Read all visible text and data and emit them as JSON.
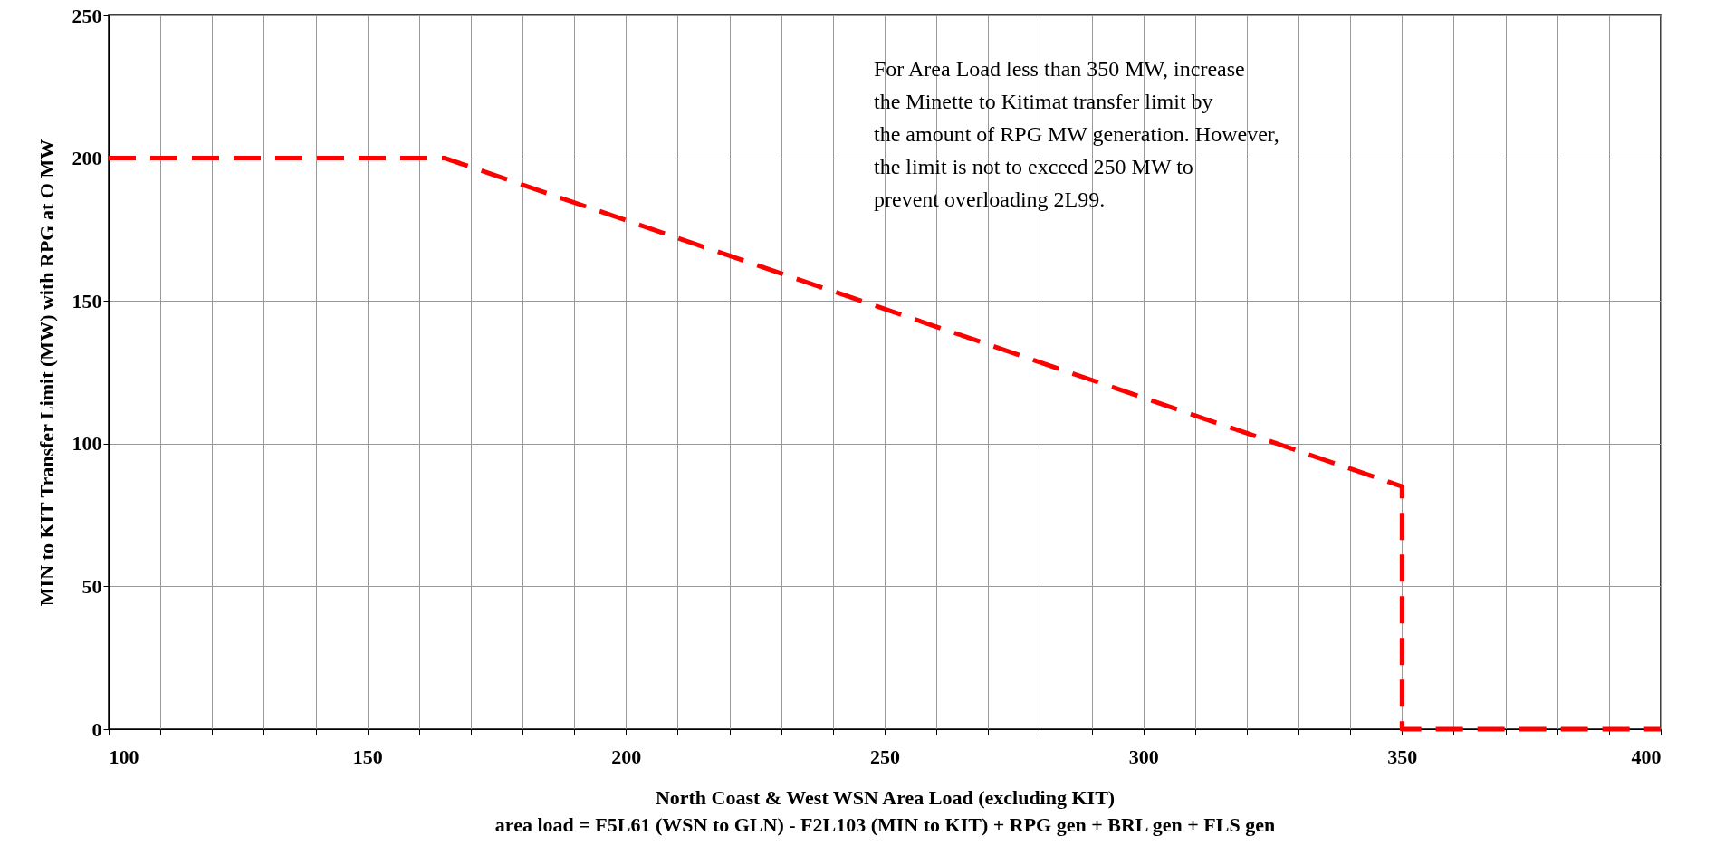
{
  "chart_data": {
    "type": "line",
    "xlabel": "North Coast & West WSN Area Load (excluding KIT)",
    "ylabel": "MIN to KIT Transfer Limit (MW) with RPG at O MW",
    "annotations": [
      "For Area Load less than 350 MW, increase the Minette to Kitimat transfer limit by the amount of RPG MW generation.  However, the limit is not to exceed 250 MW to prevent overloading 2L99.",
      "area load = F5L61 (WSN to GLN) - F2L103 (MIN to KIT) + RPG gen + BRL gen +  FLS gen"
    ],
    "x": [
      100,
      165,
      350,
      350,
      400
    ],
    "series": [
      {
        "color": "#ff0000",
        "values": [
          200,
          200,
          85,
          0,
          0
        ]
      }
    ],
    "xlim": [
      100,
      400
    ],
    "ylim": [
      0,
      250
    ],
    "xticks": [
      100,
      {
        "value": 110,
        "label": null
      },
      {
        "value": 120,
        "label": null
      },
      {
        "value": 130,
        "label": null
      },
      {
        "value": 140,
        "label": null
      },
      150,
      {
        "value": 160,
        "label": null
      },
      {
        "value": 170,
        "label": null
      },
      {
        "value": 180,
        "label": null
      },
      {
        "value": 190,
        "label": null
      },
      200,
      {
        "value": 210,
        "label": null
      },
      {
        "value": 220,
        "label": null
      },
      {
        "value": 230,
        "label": null
      },
      {
        "value": 240,
        "label": null
      },
      250,
      {
        "value": 260,
        "label": null
      },
      {
        "value": 270,
        "label": null
      },
      {
        "value": 280,
        "label": null
      },
      {
        "value": 290,
        "label": null
      },
      300,
      {
        "value": 310,
        "label": null
      },
      {
        "value": 320,
        "label": null
      },
      {
        "value": 330,
        "label": null
      },
      {
        "value": 340,
        "label": null
      },
      350,
      {
        "value": 360,
        "label": null
      },
      {
        "value": 370,
        "label": null
      },
      {
        "value": 380,
        "label": null
      },
      {
        "value": 390,
        "label": null
      },
      400
    ],
    "yticks": [
      0,
      50,
      100,
      150,
      200,
      250
    ],
    "grid": true,
    "line_style": "dashed",
    "marker": "none"
  }
}
